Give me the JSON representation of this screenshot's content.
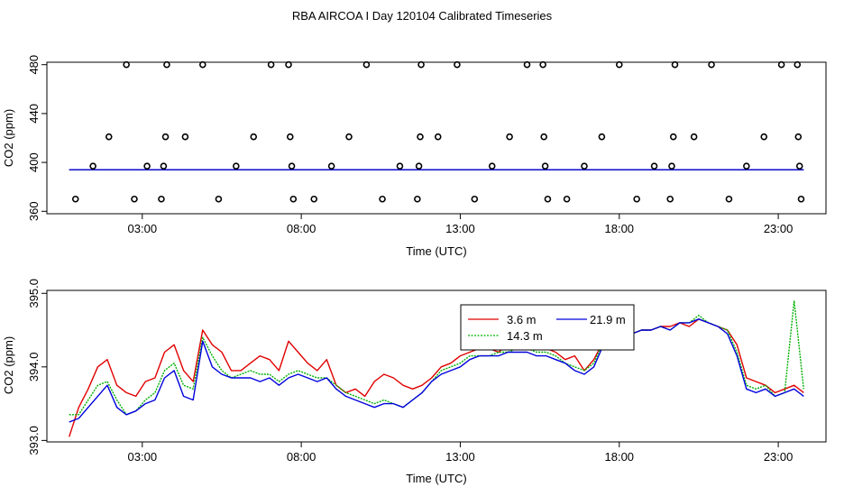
{
  "title": "RBA AIRCOA I  Day 120104  Calibrated Timeseries",
  "colors": {
    "h36": "#e00000",
    "h143": "#00b000",
    "h219": "#0000dd",
    "axis": "#000000"
  },
  "chart_data": [
    {
      "type": "scatter",
      "xlabel": "Time (UTC)",
      "ylabel": "CO2 (ppm)",
      "xlim": [
        0.0,
        24.5
      ],
      "ylim": [
        358,
        482
      ],
      "xticks": [
        3,
        8,
        13,
        18,
        23
      ],
      "xtick_labels": [
        "03:00",
        "08:00",
        "13:00",
        "18:00",
        "23:00"
      ],
      "yticks": [
        360,
        400,
        440,
        480
      ],
      "ytick_labels": [
        "360",
        "400",
        "440",
        "480"
      ],
      "points": [
        [
          0.9,
          370
        ],
        [
          1.45,
          397
        ],
        [
          1.95,
          421
        ],
        [
          2.5,
          480
        ],
        [
          2.75,
          370
        ],
        [
          3.15,
          397
        ],
        [
          3.6,
          370
        ],
        [
          3.67,
          397
        ],
        [
          3.73,
          421
        ],
        [
          3.77,
          480
        ],
        [
          4.35,
          421
        ],
        [
          4.9,
          480
        ],
        [
          5.4,
          370
        ],
        [
          5.95,
          397
        ],
        [
          6.5,
          421
        ],
        [
          7.05,
          480
        ],
        [
          7.6,
          480
        ],
        [
          7.65,
          421
        ],
        [
          7.7,
          397
        ],
        [
          7.75,
          370
        ],
        [
          8.4,
          370
        ],
        [
          8.95,
          397
        ],
        [
          9.5,
          421
        ],
        [
          10.05,
          480
        ],
        [
          10.55,
          370
        ],
        [
          11.1,
          397
        ],
        [
          11.65,
          370
        ],
        [
          11.7,
          397
        ],
        [
          11.74,
          421
        ],
        [
          11.77,
          480
        ],
        [
          12.3,
          421
        ],
        [
          12.9,
          480
        ],
        [
          13.45,
          370
        ],
        [
          14.0,
          397
        ],
        [
          14.55,
          421
        ],
        [
          15.1,
          480
        ],
        [
          15.6,
          480
        ],
        [
          15.63,
          421
        ],
        [
          15.67,
          397
        ],
        [
          15.75,
          370
        ],
        [
          16.35,
          370
        ],
        [
          16.9,
          397
        ],
        [
          17.45,
          421
        ],
        [
          18.0,
          480
        ],
        [
          18.55,
          370
        ],
        [
          19.1,
          397
        ],
        [
          19.6,
          370
        ],
        [
          19.65,
          397
        ],
        [
          19.7,
          421
        ],
        [
          19.75,
          480
        ],
        [
          20.35,
          421
        ],
        [
          20.9,
          480
        ],
        [
          21.45,
          370
        ],
        [
          22.0,
          397
        ],
        [
          22.55,
          421
        ],
        [
          23.1,
          480
        ],
        [
          23.6,
          480
        ],
        [
          23.63,
          421
        ],
        [
          23.67,
          397
        ],
        [
          23.72,
          370
        ]
      ],
      "series": [
        {
          "name": "3.6 m",
          "color": "#e00000",
          "x": [
            0.7,
            23.8
          ],
          "values": [
            394.0,
            394.0
          ]
        },
        {
          "name": "14.3 m",
          "color": "#00b000",
          "x": [
            0.7,
            23.8
          ],
          "values": [
            394.0,
            394.0
          ]
        },
        {
          "name": "21.9 m",
          "color": "#0000dd",
          "x": [
            0.7,
            23.8
          ],
          "values": [
            394.0,
            394.0
          ]
        }
      ]
    },
    {
      "type": "line",
      "xlabel": "Time (UTC)",
      "ylabel": "CO2 (ppm)",
      "xlim": [
        0.0,
        24.5
      ],
      "ylim": [
        392.98,
        395.04
      ],
      "xticks": [
        3,
        8,
        13,
        18,
        23
      ],
      "xtick_labels": [
        "03:00",
        "08:00",
        "13:00",
        "18:00",
        "23:00"
      ],
      "yticks": [
        393.0,
        394.0,
        395.0
      ],
      "ytick_labels": [
        "393.0",
        "394.0",
        "395.0"
      ],
      "legend": {
        "position": "top-center",
        "entries": [
          "3.6 m",
          "14.3 m",
          "21.9 m"
        ]
      },
      "x": [
        0.7,
        1.0,
        1.3,
        1.6,
        1.9,
        2.2,
        2.5,
        2.8,
        3.1,
        3.4,
        3.7,
        4.0,
        4.3,
        4.6,
        4.9,
        5.2,
        5.5,
        5.8,
        6.1,
        6.4,
        6.7,
        7.0,
        7.3,
        7.6,
        7.9,
        8.2,
        8.5,
        8.8,
        9.1,
        9.4,
        9.7,
        10.0,
        10.3,
        10.6,
        10.9,
        11.2,
        11.5,
        11.8,
        12.1,
        12.4,
        12.7,
        13.0,
        13.3,
        13.6,
        13.9,
        14.2,
        14.5,
        14.8,
        15.1,
        15.4,
        15.7,
        16.0,
        16.3,
        16.6,
        16.9,
        17.2,
        17.5,
        17.8,
        18.1,
        18.4,
        18.7,
        19.0,
        19.3,
        19.6,
        19.9,
        20.2,
        20.5,
        20.8,
        21.1,
        21.4,
        21.7,
        22.0,
        22.3,
        22.6,
        22.9,
        23.2,
        23.5,
        23.8
      ],
      "series": [
        {
          "name": "3.6 m",
          "color": "#e00000",
          "values": [
            393.05,
            393.45,
            393.7,
            394.0,
            394.1,
            393.75,
            393.65,
            393.6,
            393.8,
            393.85,
            394.2,
            394.3,
            393.95,
            393.8,
            394.5,
            394.3,
            394.2,
            393.95,
            393.95,
            394.05,
            394.15,
            394.1,
            393.95,
            394.35,
            394.2,
            394.05,
            393.95,
            394.1,
            393.75,
            393.65,
            393.7,
            393.6,
            393.8,
            393.9,
            393.85,
            393.75,
            393.7,
            393.75,
            393.85,
            394.0,
            394.05,
            394.15,
            394.2,
            394.25,
            394.25,
            394.2,
            394.3,
            394.3,
            394.3,
            394.25,
            394.25,
            394.2,
            394.1,
            394.15,
            393.95,
            394.1,
            394.35,
            394.45,
            394.5,
            394.45,
            394.5,
            394.5,
            394.55,
            394.55,
            394.6,
            394.55,
            394.65,
            394.6,
            394.55,
            394.5,
            394.3,
            393.85,
            393.8,
            393.75,
            393.65,
            393.7,
            393.75,
            393.65
          ]
        },
        {
          "name": "14.3 m",
          "color": "#00b000",
          "values": [
            393.35,
            393.35,
            393.55,
            393.75,
            393.8,
            393.55,
            393.35,
            393.4,
            393.55,
            393.65,
            393.95,
            394.05,
            393.75,
            393.7,
            394.4,
            394.15,
            393.95,
            393.85,
            393.9,
            393.95,
            393.9,
            393.9,
            393.8,
            393.9,
            393.95,
            393.9,
            393.85,
            393.85,
            393.75,
            393.65,
            393.6,
            393.55,
            393.5,
            393.55,
            393.5,
            393.45,
            393.55,
            393.65,
            393.8,
            393.95,
            394.0,
            394.05,
            394.15,
            394.15,
            394.15,
            394.2,
            394.2,
            394.25,
            394.25,
            394.2,
            394.2,
            394.15,
            394.05,
            394.0,
            393.95,
            394.05,
            394.35,
            394.45,
            394.45,
            394.45,
            394.5,
            394.5,
            394.55,
            394.5,
            394.6,
            394.6,
            394.7,
            394.6,
            394.55,
            394.5,
            394.2,
            393.75,
            393.7,
            393.75,
            393.6,
            393.65,
            394.9,
            393.7
          ]
        },
        {
          "name": "21.9 m",
          "color": "#0000dd",
          "values": [
            393.25,
            393.3,
            393.45,
            393.6,
            393.75,
            393.45,
            393.35,
            393.4,
            393.5,
            393.55,
            393.85,
            393.95,
            393.6,
            393.55,
            394.35,
            394.0,
            393.9,
            393.85,
            393.85,
            393.85,
            393.8,
            393.85,
            393.75,
            393.85,
            393.9,
            393.85,
            393.8,
            393.85,
            393.7,
            393.6,
            393.55,
            393.5,
            393.45,
            393.5,
            393.5,
            393.45,
            393.55,
            393.65,
            393.8,
            393.9,
            393.95,
            394.0,
            394.1,
            394.15,
            394.15,
            394.15,
            394.2,
            394.2,
            394.2,
            394.15,
            394.15,
            394.1,
            394.05,
            393.95,
            393.9,
            394.0,
            394.3,
            394.4,
            394.45,
            394.45,
            394.5,
            394.5,
            394.55,
            394.5,
            394.6,
            394.6,
            394.65,
            394.6,
            394.55,
            394.45,
            394.15,
            393.7,
            393.65,
            393.7,
            393.6,
            393.65,
            393.7,
            393.6
          ]
        }
      ]
    }
  ]
}
